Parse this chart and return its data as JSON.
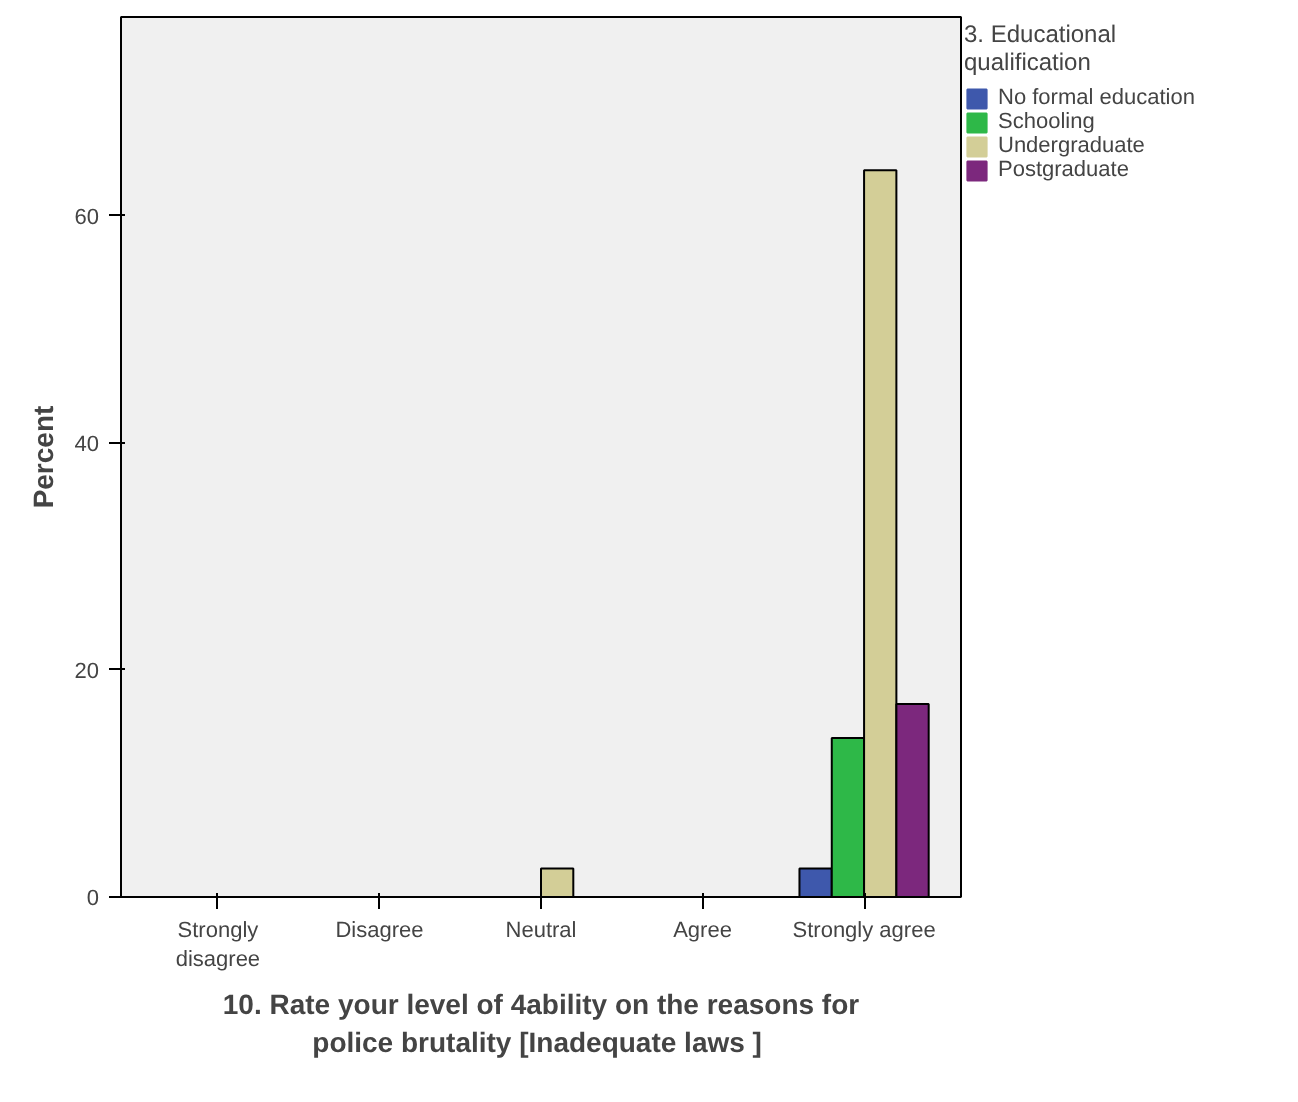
{
  "chart_data": {
    "type": "bar",
    "xlabel": "10. Rate your level of 4ability on the reasons for police brutality  [Inadequate laws ]",
    "ylabel": "Percent",
    "legend_title": "3. Educational qualification",
    "categories": [
      "Strongly disagree",
      "Disagree",
      "Neutral",
      "Agree",
      "Strongly agree"
    ],
    "series": [
      {
        "name": "No formal education",
        "color": "#3e58ac",
        "values": [
          0,
          0,
          0,
          0,
          2.5
        ]
      },
      {
        "name": "Schooling",
        "color": "#2eb848",
        "values": [
          0,
          0,
          0,
          0,
          14
        ]
      },
      {
        "name": "Undergraduate",
        "color": "#d3ce97",
        "values": [
          0,
          0,
          2.5,
          0,
          64
        ]
      },
      {
        "name": "Postgraduate",
        "color": "#7c287d",
        "values": [
          0,
          0,
          0,
          0,
          17
        ]
      }
    ],
    "ylim": [
      0,
      77.5
    ],
    "yticks": [
      0,
      20,
      40,
      60
    ],
    "legend": "right"
  }
}
